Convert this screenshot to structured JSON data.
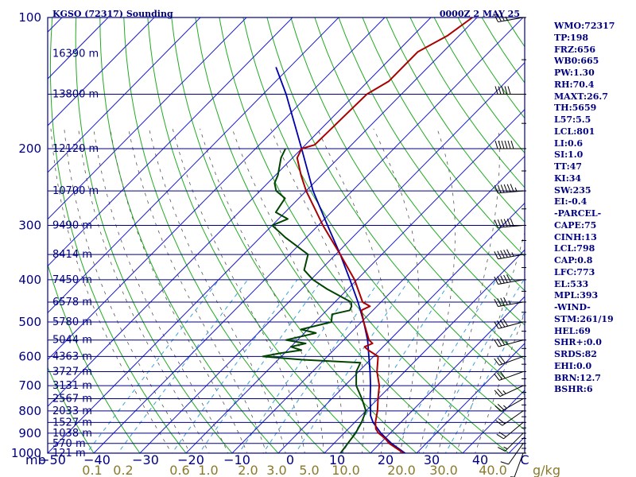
{
  "header": {
    "station": "KGSO (72317) Sounding",
    "time": "0000Z  2 MAY 25"
  },
  "indices": [
    "WMO:72317",
    "TP:198",
    "FRZ:656",
    "WB0:665",
    "PW:1.30",
    "RH:70.4",
    "MAXT:26.7",
    "TH:5659",
    "L57:5.5",
    "LCL:801",
    "LI:0.6",
    "SI:1.0",
    "TT:47",
    "KI:34",
    "SW:235",
    "EI:-0.4",
    "-PARCEL-",
    "CAPE:75",
    "CINH:13",
    "LCL:798",
    "CAP:0.8",
    "LFC:773",
    "EL:533",
    "MPL:393",
    "-WIND-",
    "STM:261/19",
    "HEL:69",
    "SHR+:0.0",
    "SRDS:82",
    "EHI:0.0",
    "BRN:12.7",
    "BSHR:6"
  ],
  "colors": {
    "axis": "#000080",
    "isobar": "#000080",
    "isotherm": "#1a1acc",
    "dry_adiabat": "#22aa22",
    "moist_adiabat": "#555555",
    "mixing_ratio": "#3aa0d8",
    "temperature": "#aa0000",
    "dewpoint": "#004400",
    "parcel": "#0000aa",
    "barbs": "#000000"
  },
  "chart_data": {
    "type": "skew-t",
    "x_unit_label": "mb",
    "ylim": [
      1000,
      100
    ],
    "xlim": [
      -50,
      50
    ],
    "pressure_ticks": [
      100,
      200,
      300,
      400,
      500,
      600,
      700,
      800,
      900,
      1000
    ],
    "temperature_ticks": [
      "−50",
      "−40",
      "−30",
      "−20",
      "−10",
      "0",
      "10",
      "20",
      "30",
      "40",
      "C"
    ],
    "mixing_ratio_labels": [
      "0.1",
      "0.2",
      "0.6",
      "1.0",
      "2.0",
      "3.0",
      "5.0",
      "10.0",
      "20.0",
      "30.0",
      "40.0"
    ],
    "mixing_ratio_unit": "g/kg",
    "height_labels": [
      {
        "p": 121,
        "label": "16390 m"
      },
      {
        "p": 150,
        "label": "13800 m"
      },
      {
        "p": 200,
        "label": "12120 m"
      },
      {
        "p": 250,
        "label": "10700 m"
      },
      {
        "p": 300,
        "label": "9490 m"
      },
      {
        "p": 350,
        "label": "8414 m"
      },
      {
        "p": 400,
        "label": "7450 m"
      },
      {
        "p": 450,
        "label": "6578 m"
      },
      {
        "p": 500,
        "label": "5780 m"
      },
      {
        "p": 550,
        "label": "5044 m"
      },
      {
        "p": 600,
        "label": "4363 m"
      },
      {
        "p": 650,
        "label": "3727 m"
      },
      {
        "p": 700,
        "label": "3131 m"
      },
      {
        "p": 750,
        "label": "2567 m"
      },
      {
        "p": 800,
        "label": "2033 m"
      },
      {
        "p": 850,
        "label": "1527 m"
      },
      {
        "p": 900,
        "label": "1038 m"
      },
      {
        "p": 950,
        "label": "570 m"
      },
      {
        "p": 1000,
        "label": "121 m"
      }
    ],
    "temperature_profile": [
      [
        1000,
        27.2
      ],
      [
        950,
        22.0
      ],
      [
        925,
        20.0
      ],
      [
        900,
        17.5
      ],
      [
        880,
        16.0
      ],
      [
        850,
        14.5
      ],
      [
        800,
        12.5
      ],
      [
        750,
        10.0
      ],
      [
        700,
        7.5
      ],
      [
        650,
        4.0
      ],
      [
        600,
        1.0
      ],
      [
        580,
        -2.5
      ],
      [
        570,
        -4.0
      ],
      [
        560,
        -3.0
      ],
      [
        550,
        -4.5
      ],
      [
        500,
        -9.5
      ],
      [
        470,
        -12.5
      ],
      [
        460,
        -11.5
      ],
      [
        450,
        -14.0
      ],
      [
        400,
        -20.5
      ],
      [
        350,
        -29.0
      ],
      [
        300,
        -39.0
      ],
      [
        250,
        -50.0
      ],
      [
        230,
        -54.5
      ],
      [
        210,
        -59.0
      ],
      [
        200,
        -60.0
      ],
      [
        196,
        -58.0
      ],
      [
        150,
        -57.5
      ],
      [
        140,
        -55.5
      ],
      [
        120,
        -55.5
      ],
      [
        110,
        -52.5
      ],
      [
        100,
        -51.0
      ]
    ],
    "dewpoint_profile": [
      [
        1000,
        13.5
      ],
      [
        950,
        13.0
      ],
      [
        900,
        12.5
      ],
      [
        850,
        11.5
      ],
      [
        800,
        10.0
      ],
      [
        750,
        6.5
      ],
      [
        700,
        2.5
      ],
      [
        650,
        -0.5
      ],
      [
        620,
        -1.5
      ],
      [
        610,
        -15.0
      ],
      [
        600,
        -24.0
      ],
      [
        590,
        -21.0
      ],
      [
        580,
        -17.0
      ],
      [
        570,
        -20.0
      ],
      [
        560,
        -17.5
      ],
      [
        550,
        -22.5
      ],
      [
        530,
        -17.5
      ],
      [
        520,
        -21.5
      ],
      [
        500,
        -16.5
      ],
      [
        480,
        -18.0
      ],
      [
        470,
        -15.0
      ],
      [
        460,
        -15.5
      ],
      [
        450,
        -16.5
      ],
      [
        420,
        -24.5
      ],
      [
        400,
        -29.5
      ],
      [
        380,
        -33.5
      ],
      [
        350,
        -36.0
      ],
      [
        320,
        -44.5
      ],
      [
        300,
        -50.0
      ],
      [
        290,
        -48.0
      ],
      [
        280,
        -52.0
      ],
      [
        260,
        -53.0
      ],
      [
        250,
        -56.5
      ],
      [
        240,
        -58.5
      ],
      [
        230,
        -59.5
      ],
      [
        210,
        -62.5
      ],
      [
        200,
        -63.5
      ]
    ],
    "parcel_profile": [
      [
        1000,
        27.5
      ],
      [
        950,
        22.5
      ],
      [
        900,
        18.0
      ],
      [
        850,
        14.0
      ],
      [
        820,
        12.0
      ],
      [
        800,
        11.0
      ],
      [
        750,
        8.3
      ],
      [
        700,
        5.6
      ],
      [
        650,
        2.5
      ],
      [
        600,
        -1.0
      ],
      [
        550,
        -4.8
      ],
      [
        500,
        -9.5
      ],
      [
        450,
        -15.0
      ],
      [
        400,
        -21.5
      ],
      [
        350,
        -29.0
      ],
      [
        300,
        -38.0
      ],
      [
        250,
        -48.5
      ],
      [
        200,
        -60.0
      ],
      [
        150,
        -75.0
      ],
      [
        130,
        -83.0
      ]
    ],
    "wind_barbs": [
      [
        1000,
        200,
        5
      ],
      [
        950,
        215,
        10
      ],
      [
        900,
        225,
        15
      ],
      [
        850,
        230,
        20
      ],
      [
        800,
        235,
        20
      ],
      [
        750,
        240,
        25
      ],
      [
        700,
        245,
        25
      ],
      [
        650,
        250,
        30
      ],
      [
        600,
        250,
        30
      ],
      [
        550,
        255,
        35
      ],
      [
        500,
        255,
        40
      ],
      [
        450,
        260,
        45
      ],
      [
        400,
        260,
        50
      ],
      [
        350,
        260,
        55
      ],
      [
        300,
        265,
        60
      ],
      [
        250,
        265,
        65
      ],
      [
        200,
        270,
        60
      ],
      [
        150,
        270,
        50
      ],
      [
        100,
        260,
        35
      ]
    ]
  }
}
